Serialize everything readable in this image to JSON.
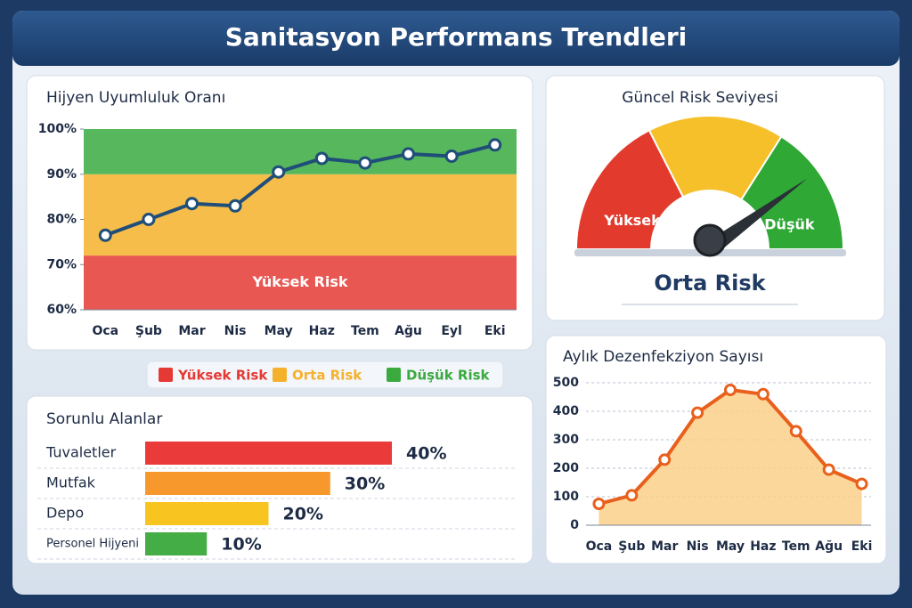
{
  "title": "Sanitasyon Performans Trendleri",
  "chart_data": [
    {
      "type": "line",
      "title": "Hijyen Uyumluluk Oranı",
      "categories": [
        "Oca",
        "Şub",
        "Mar",
        "Nis",
        "May",
        "Haz",
        "Tem",
        "Ağu",
        "Eyl",
        "Eki"
      ],
      "values": [
        76.5,
        80,
        83.5,
        83,
        90.5,
        93.5,
        92.5,
        94.5,
        94,
        96.5
      ],
      "color": "#1f4e79",
      "ylim": [
        60,
        100
      ],
      "yticks": [
        {
          "value": 60,
          "label": "60%"
        },
        {
          "value": 70,
          "label": "70%"
        },
        {
          "value": 80,
          "label": "80%"
        },
        {
          "value": 90,
          "label": "90%"
        },
        {
          "value": 100,
          "label": "100%"
        }
      ],
      "grid": false,
      "zones": [
        {
          "name": "Yüksek Risk",
          "color": "#e53935",
          "from": 60,
          "to": 72
        },
        {
          "name": "Orta Risk",
          "color": "#f6b12c",
          "from": 72,
          "to": 90
        },
        {
          "name": "Düşük Risk",
          "color": "#3aaa3f",
          "from": 90,
          "to": 100
        }
      ]
    },
    {
      "type": "gauge",
      "title": "Güncel Risk Seviyesi",
      "lim": [
        0,
        100
      ],
      "value": 80,
      "status": "Orta Risk",
      "segments": [
        {
          "label": "Yüksek",
          "color": "#e23b2e",
          "from": 0,
          "to": 35
        },
        {
          "color": "#f6c02a",
          "from": 35,
          "to": 68
        },
        {
          "label": "Düşük",
          "color": "#2fa836",
          "from": 68,
          "to": 100
        }
      ]
    },
    {
      "type": "hbar",
      "title": "Sorunlu Alanlar",
      "categories": [
        "Tuvaletler",
        "Mutfak",
        "Depo",
        "Personel Hijyeni"
      ],
      "values": [
        40,
        30,
        20,
        10
      ],
      "value_labels": [
        "40%",
        "30%",
        "20%",
        "10%"
      ],
      "colors": [
        "#ea3a3a",
        "#f7982d",
        "#f8c420",
        "#45ad45"
      ]
    },
    {
      "type": "area",
      "title": "Aylık Dezenfekziyon Sayısı",
      "categories": [
        "Oca",
        "Şub",
        "Mar",
        "Nis",
        "May",
        "Haz",
        "Tem",
        "Ağu",
        "Eki"
      ],
      "values": [
        75,
        105,
        230,
        395,
        475,
        460,
        330,
        195,
        145
      ],
      "color": "#e8601c",
      "fill": "#fbd08a",
      "ylim": [
        0,
        500
      ],
      "yticks": [
        0,
        100,
        200,
        300,
        400,
        500
      ],
      "grid": true
    }
  ]
}
